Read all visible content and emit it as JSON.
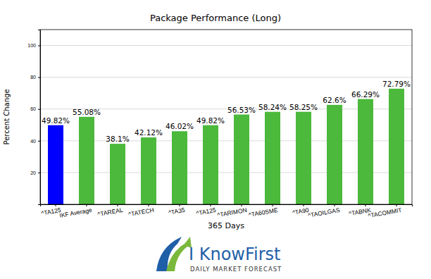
{
  "chart_data": {
    "type": "bar",
    "title": "Package Performance (Long)",
    "x_label": "365 Days",
    "y_label": "Percent Change",
    "categories": [
      "^TA125",
      "IKF Average",
      "^TAREAL",
      "^TATECH",
      "^TA35",
      "^TA125",
      "^TARIMON",
      "^TA60SME",
      "^TA90",
      "^TAOILGAS",
      "^TABNK",
      "^TACOMMIT"
    ],
    "values": [
      49.82,
      55.08,
      38.1,
      42.12,
      46.02,
      49.82,
      56.53,
      58.24,
      58.25,
      62.6,
      66.29,
      72.79
    ],
    "value_labels": [
      "49.82%",
      "55.08%",
      "38.1%",
      "42.12%",
      "46.02%",
      "49.82%",
      "56.53%",
      "58.24%",
      "58.25%",
      "62.6%",
      "66.29%",
      "72.79%"
    ],
    "colors": [
      "#0000ff",
      "#4cb83c",
      "#4cb83c",
      "#4cb83c",
      "#4cb83c",
      "#4cb83c",
      "#4cb83c",
      "#4cb83c",
      "#4cb83c",
      "#4cb83c",
      "#4cb83c",
      "#4cb83c"
    ],
    "ylim": [
      0,
      110
    ],
    "yticks": [
      20,
      40,
      60,
      80,
      100
    ],
    "grid": true,
    "data_labels": true,
    "annotations": [
      "I KnowFirst",
      "DAILY MARKET FORECAST"
    ]
  }
}
